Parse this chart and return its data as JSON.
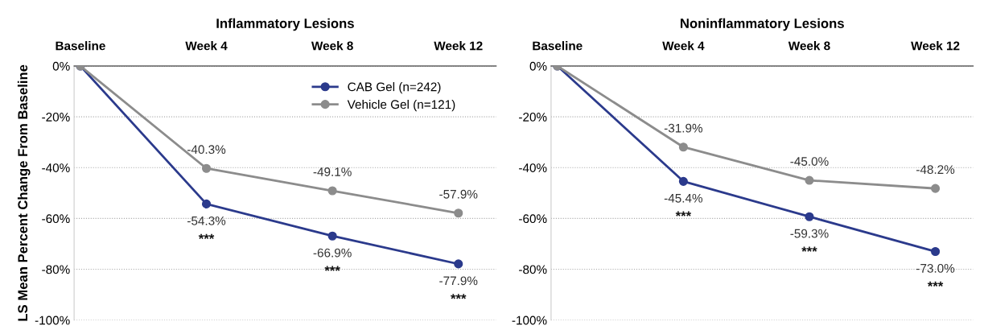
{
  "chart_data": [
    {
      "type": "line",
      "title": "Inflammatory Lesions",
      "ylabel": "LS Mean Percent Change From Baseline",
      "categories": [
        "Baseline",
        "Week 4",
        "Week 8",
        "Week 12"
      ],
      "series": [
        {
          "name": "CAB Gel (n=242)",
          "color": "#2b3a8c",
          "values": [
            0,
            -54.3,
            -66.9,
            -77.9
          ],
          "value_labels": [
            null,
            "-54.3%",
            "-66.9%",
            "-77.9%"
          ]
        },
        {
          "name": "Vehicle Gel (n=121)",
          "color": "#8c8c8c",
          "values": [
            0,
            -40.3,
            -49.1,
            -57.9
          ],
          "value_labels": [
            null,
            "-40.3%",
            "-49.1%",
            "-57.9%"
          ]
        }
      ],
      "ylim": [
        -100,
        0
      ],
      "yticks": [
        {
          "value": 0,
          "label": "0%"
        },
        {
          "value": -20,
          "label": "-20%"
        },
        {
          "value": -40,
          "label": "-40%"
        },
        {
          "value": -60,
          "label": "-60%"
        },
        {
          "value": -80,
          "label": "-80%"
        },
        {
          "value": -100,
          "label": "-100%"
        }
      ],
      "annotations": [
        {
          "text": "***",
          "x": "Week 4",
          "y": -54.3
        },
        {
          "text": "***",
          "x": "Week 8",
          "y": -66.9
        },
        {
          "text": "***",
          "x": "Week 12",
          "y": -77.9
        }
      ],
      "grid": "y",
      "legend": "top right",
      "marker": "circle",
      "line_style": "solid"
    },
    {
      "type": "line",
      "title": "Noninflammatory Lesions",
      "categories": [
        "Baseline",
        "Week 4",
        "Week 8",
        "Week 12"
      ],
      "series": [
        {
          "color": "#2b3a8c",
          "values": [
            0,
            -45.4,
            -59.3,
            -73.0
          ],
          "value_labels": [
            null,
            "-45.4%",
            "-59.3%",
            "-73.0%"
          ]
        },
        {
          "color": "#8c8c8c",
          "values": [
            0,
            -31.9,
            -45.0,
            -48.2
          ],
          "value_labels": [
            null,
            "-31.9%",
            "-45.0%",
            "-48.2%"
          ]
        }
      ],
      "ylim": [
        -100,
        0
      ],
      "yticks": [
        {
          "value": 0,
          "label": "0%"
        },
        {
          "value": -20,
          "label": "-20%"
        },
        {
          "value": -40,
          "label": "-40%"
        },
        {
          "value": -60,
          "label": "-60%"
        },
        {
          "value": -80,
          "label": "-80%"
        },
        {
          "value": -100,
          "label": "-100%"
        }
      ],
      "annotations": [
        {
          "text": "***",
          "x": "Week 4",
          "y": -45.4
        },
        {
          "text": "***",
          "x": "Week 8",
          "y": -59.3
        },
        {
          "text": "***",
          "x": "Week 12",
          "y": -73.0
        }
      ],
      "grid": "y",
      "marker": "circle",
      "line_style": "solid"
    }
  ]
}
